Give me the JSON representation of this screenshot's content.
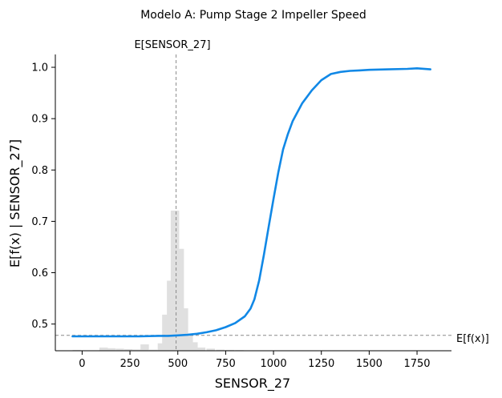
{
  "chart_data": {
    "type": "line",
    "title": "Modelo A: Pump Stage 2 Impeller Speed",
    "xlabel": "SENSOR_27",
    "ylabel": "E[f(x) | SENSOR_27]",
    "xlim": [
      -140,
      1930
    ],
    "ylim": [
      0.448,
      1.025
    ],
    "x_ticks": [
      0,
      250,
      500,
      750,
      1000,
      1250,
      1500,
      1750
    ],
    "y_ticks": [
      0.5,
      0.6,
      0.7,
      0.8,
      0.9,
      1.0
    ],
    "x_tick_labels": [
      "0",
      "250",
      "500",
      "750",
      "1000",
      "1250",
      "1500",
      "1750"
    ],
    "y_tick_labels": [
      "0.5",
      "0.6",
      "0.7",
      "0.8",
      "0.9",
      "1.0"
    ],
    "grid": false,
    "line_color": "#1188e6",
    "series": [
      {
        "x": [
          -50,
          0,
          100,
          200,
          300,
          400,
          450,
          500,
          550,
          600,
          650,
          700,
          750,
          800,
          850,
          880,
          900,
          925,
          950,
          975,
          1000,
          1025,
          1050,
          1075,
          1100,
          1150,
          1200,
          1250,
          1300,
          1350,
          1400,
          1450,
          1500,
          1600,
          1700,
          1750,
          1820
        ],
        "y": [
          0.476,
          0.476,
          0.476,
          0.476,
          0.476,
          0.477,
          0.477,
          0.478,
          0.479,
          0.481,
          0.484,
          0.488,
          0.494,
          0.502,
          0.515,
          0.53,
          0.548,
          0.585,
          0.635,
          0.69,
          0.744,
          0.795,
          0.84,
          0.87,
          0.895,
          0.93,
          0.955,
          0.975,
          0.987,
          0.991,
          0.993,
          0.994,
          0.995,
          0.996,
          0.997,
          0.998,
          0.996
        ]
      }
    ],
    "reference_lines": {
      "vertical": {
        "x": 491,
        "label": "E[SENSOR_27]"
      },
      "horizontal": {
        "y": 0.478,
        "label": "E[f(x)]"
      }
    },
    "histogram": {
      "color": "#e0e0e0",
      "bin_width": 44,
      "bin_starts": [
        -50,
        90,
        130,
        175,
        220,
        265,
        305,
        350,
        395,
        418,
        443,
        463,
        488,
        510,
        535,
        560,
        600,
        650,
        700,
        750,
        800
      ],
      "relative_heights": [
        0.004,
        0.015,
        0.012,
        0.01,
        0.008,
        0.006,
        0.03,
        0.005,
        0.035,
        0.17,
        0.33,
        0.66,
        0.48,
        0.2,
        0.08,
        0.04,
        0.015,
        0.01,
        0.005,
        0.004,
        0.003
      ]
    }
  }
}
